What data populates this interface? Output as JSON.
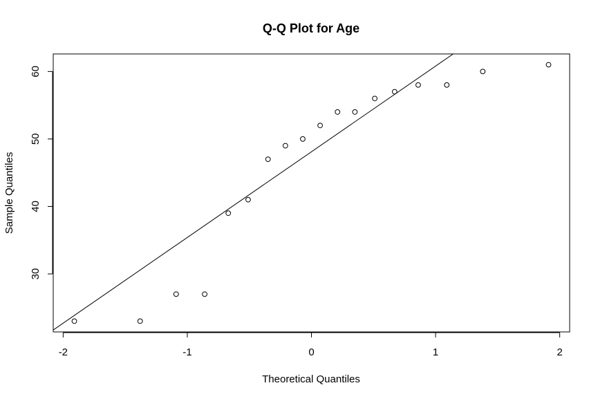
{
  "chart_data": {
    "type": "scatter",
    "title": "Q-Q Plot for Age",
    "xlabel": "Theoretical Quantiles",
    "ylabel": "Sample Quantiles",
    "xlim": [
      -2.08,
      2.08
    ],
    "ylim": [
      21.4,
      62.6
    ],
    "xticks": [
      -2,
      -1,
      0,
      1,
      2
    ],
    "xtick_labels": [
      "-2",
      "-1",
      "0",
      "1",
      "2"
    ],
    "yticks": [
      30,
      40,
      50,
      60
    ],
    "ytick_labels": [
      "30",
      "40",
      "50",
      "60"
    ],
    "grid": false,
    "points": {
      "x": [
        -1.91,
        -1.38,
        -1.09,
        -0.86,
        -0.67,
        -0.51,
        -0.35,
        -0.21,
        -0.07,
        0.07,
        0.21,
        0.35,
        0.51,
        0.67,
        0.86,
        1.09,
        1.38,
        1.91
      ],
      "y": [
        23,
        23,
        27,
        27,
        39,
        41,
        47,
        49,
        50,
        52,
        54,
        54,
        56,
        57,
        58,
        58,
        60,
        61
      ]
    },
    "reference_line": {
      "type": "qqline",
      "intercept": 48.1,
      "slope": 12.7
    }
  }
}
